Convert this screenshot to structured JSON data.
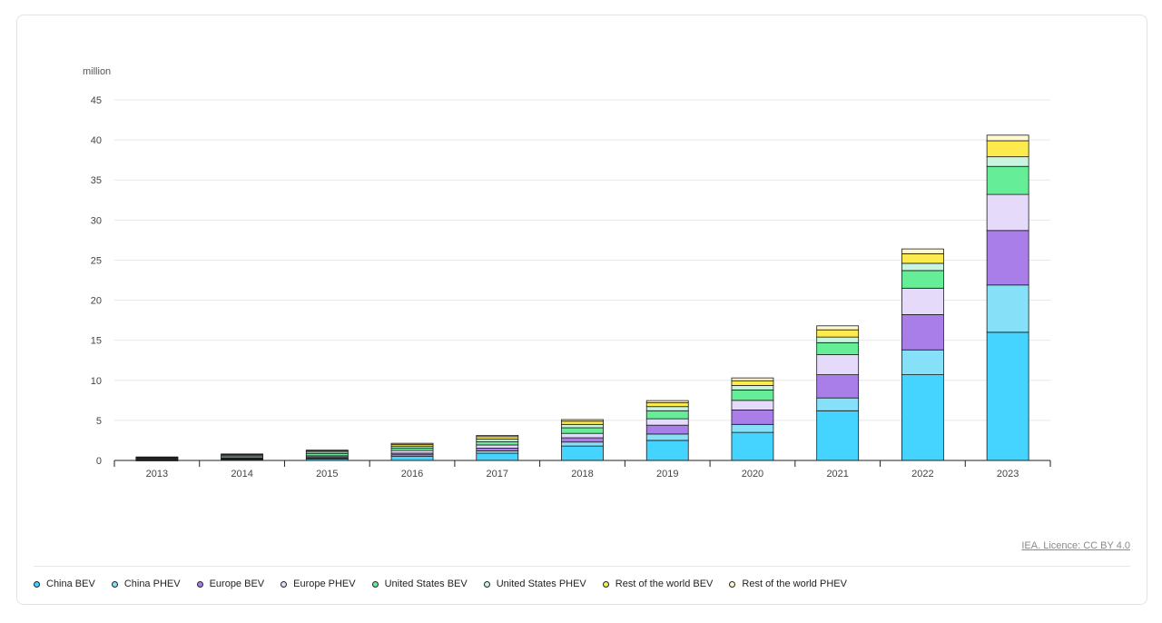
{
  "unit_label": "million",
  "licence": "IEA. Licence: CC BY 4.0",
  "chart_data": {
    "type": "bar",
    "stacked": true,
    "categories": [
      "2013",
      "2014",
      "2015",
      "2016",
      "2017",
      "2018",
      "2019",
      "2020",
      "2021",
      "2022",
      "2023"
    ],
    "ylim": [
      0,
      45
    ],
    "yticks": [
      0,
      5,
      10,
      15,
      20,
      25,
      30,
      35,
      40,
      45
    ],
    "grid": true,
    "legend_position": "bottom",
    "series": [
      {
        "name": "China BEV",
        "color": "#44d4ff",
        "values": [
          0.02,
          0.1,
          0.2,
          0.5,
          0.9,
          1.8,
          2.5,
          3.5,
          6.2,
          10.7,
          16.0
        ]
      },
      {
        "name": "China PHEV",
        "color": "#86e0f7",
        "values": [
          0.01,
          0.05,
          0.1,
          0.2,
          0.3,
          0.5,
          0.8,
          1.0,
          1.6,
          3.1,
          5.9
        ]
      },
      {
        "name": "Europe BEV",
        "color": "#a97ee8",
        "values": [
          0.04,
          0.08,
          0.14,
          0.21,
          0.33,
          0.53,
          1.1,
          1.8,
          2.9,
          4.4,
          6.8
        ]
      },
      {
        "name": "Europe PHEV",
        "color": "#e6dafa",
        "values": [
          0.04,
          0.08,
          0.14,
          0.33,
          0.4,
          0.55,
          0.8,
          1.2,
          2.5,
          3.3,
          4.5
        ]
      },
      {
        "name": "United States BEV",
        "color": "#66ed97",
        "values": [
          0.1,
          0.17,
          0.26,
          0.32,
          0.42,
          0.7,
          1.0,
          1.3,
          1.5,
          2.2,
          3.5
        ]
      },
      {
        "name": "United States PHEV",
        "color": "#c9f4df",
        "values": [
          0.08,
          0.13,
          0.2,
          0.23,
          0.32,
          0.42,
          0.52,
          0.55,
          0.7,
          0.9,
          1.2
        ]
      },
      {
        "name": "Rest of the world BEV",
        "color": "#fdeb4d",
        "values": [
          0.1,
          0.12,
          0.15,
          0.22,
          0.3,
          0.4,
          0.5,
          0.6,
          0.9,
          1.2,
          2.0
        ]
      },
      {
        "name": "Rest of the world PHEV",
        "color": "#fff7cd",
        "values": [
          0.05,
          0.08,
          0.1,
          0.13,
          0.15,
          0.2,
          0.25,
          0.35,
          0.5,
          0.6,
          0.7
        ]
      }
    ]
  }
}
